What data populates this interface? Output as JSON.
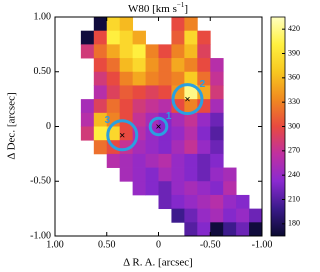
{
  "chart_data": {
    "type": "heatmap",
    "title": "W80 [km s",
    "title_sup": "−1",
    "title_end": "]",
    "xlabel": "Δ R. A. [arcsec]",
    "ylabel": "Δ Dec. [arcsec]",
    "xlim": [
      1.0,
      -1.0
    ],
    "ylim": [
      -1.0,
      1.0
    ],
    "xticks": [
      {
        "value": 1,
        "label": "1.00"
      },
      {
        "value": 0.5,
        "label": "0.50"
      },
      0,
      {
        "value": -0.5,
        "label": "-0.50"
      },
      {
        "value": -1,
        "label": "-1.00"
      }
    ],
    "yticks": [
      {
        "value": 1,
        "label": "1.00"
      },
      {
        "value": 0.5,
        "label": "0.50"
      },
      0,
      {
        "value": -0.5,
        "label": "-0.50"
      },
      {
        "value": -1,
        "label": "-1.00"
      }
    ],
    "x": [
      0.9375,
      0.8125,
      0.6875,
      0.5625,
      0.4375,
      0.3125,
      0.1875,
      0.0625,
      -0.0625,
      -0.1875,
      -0.3125,
      -0.4375,
      -0.5625,
      -0.6875,
      -0.8125,
      -0.9375
    ],
    "y": [
      0.9375,
      0.8125,
      0.6875,
      0.5625,
      0.4375,
      0.3125,
      0.1875,
      0.0625,
      -0.0625,
      -0.1875,
      -0.3125,
      -0.4375,
      -0.5625,
      -0.6875,
      -0.8125,
      -0.9375
    ],
    "z": [
      [
        null,
        null,
        null,
        170,
        380,
        360,
        null,
        null,
        null,
        300,
        330,
        null,
        null,
        null,
        null,
        null
      ],
      [
        null,
        null,
        170,
        300,
        400,
        380,
        350,
        null,
        null,
        310,
        380,
        300,
        null,
        null,
        null,
        null
      ],
      [
        null,
        null,
        280,
        320,
        350,
        380,
        400,
        330,
        300,
        330,
        360,
        290,
        null,
        null,
        null,
        null
      ],
      [
        null,
        null,
        null,
        300,
        320,
        360,
        380,
        340,
        320,
        350,
        330,
        300,
        260,
        null,
        null,
        null
      ],
      [
        null,
        null,
        null,
        280,
        300,
        330,
        350,
        330,
        320,
        330,
        370,
        320,
        270,
        null,
        null,
        null
      ],
      [
        null,
        null,
        null,
        260,
        290,
        310,
        300,
        290,
        300,
        340,
        420,
        350,
        280,
        null,
        null,
        null
      ],
      [
        null,
        null,
        250,
        290,
        320,
        300,
        280,
        270,
        260,
        300,
        330,
        300,
        250,
        null,
        null,
        null
      ],
      [
        null,
        null,
        260,
        360,
        330,
        300,
        270,
        250,
        230,
        250,
        270,
        240,
        220,
        null,
        null,
        null
      ],
      [
        null,
        null,
        280,
        400,
        380,
        300,
        260,
        240,
        230,
        240,
        260,
        230,
        210,
        null,
        null,
        null
      ],
      [
        null,
        null,
        null,
        320,
        300,
        270,
        250,
        240,
        230,
        250,
        270,
        240,
        220,
        null,
        null,
        null
      ],
      [
        null,
        null,
        null,
        null,
        260,
        250,
        240,
        250,
        260,
        240,
        230,
        220,
        230,
        null,
        null,
        null
      ],
      [
        null,
        null,
        null,
        null,
        null,
        250,
        240,
        230,
        250,
        240,
        230,
        220,
        240,
        250,
        null,
        null
      ],
      [
        null,
        null,
        null,
        null,
        null,
        null,
        240,
        230,
        220,
        240,
        250,
        240,
        230,
        260,
        null,
        null
      ],
      [
        null,
        null,
        null,
        null,
        null,
        null,
        null,
        null,
        220,
        230,
        240,
        250,
        260,
        240,
        230,
        null
      ],
      [
        null,
        null,
        null,
        null,
        null,
        null,
        null,
        null,
        null,
        200,
        220,
        240,
        250,
        230,
        240,
        220
      ],
      [
        null,
        null,
        null,
        null,
        null,
        null,
        null,
        null,
        null,
        null,
        210,
        230,
        170,
        200,
        220,
        170
      ]
    ],
    "zlim": [
      165,
      435
    ],
    "zticks": [
      180,
      210,
      240,
      270,
      300,
      330,
      360,
      390,
      420
    ],
    "colors": [
      "#0a0a30",
      "#3a1a8a",
      "#8a2ad0",
      "#c030a0",
      "#e84a40",
      "#f08a20",
      "#f8c820",
      "#fff040",
      "#ffffc0"
    ],
    "regions": [
      {
        "label": "1",
        "x": 0.0,
        "y": 0.0,
        "r": 0.08
      },
      {
        "label": "2",
        "x": -0.28,
        "y": 0.25,
        "r": 0.14
      },
      {
        "label": "3",
        "x": 0.35,
        "y": -0.08,
        "r": 0.14
      }
    ],
    "region_color": "#2aa0e0"
  }
}
